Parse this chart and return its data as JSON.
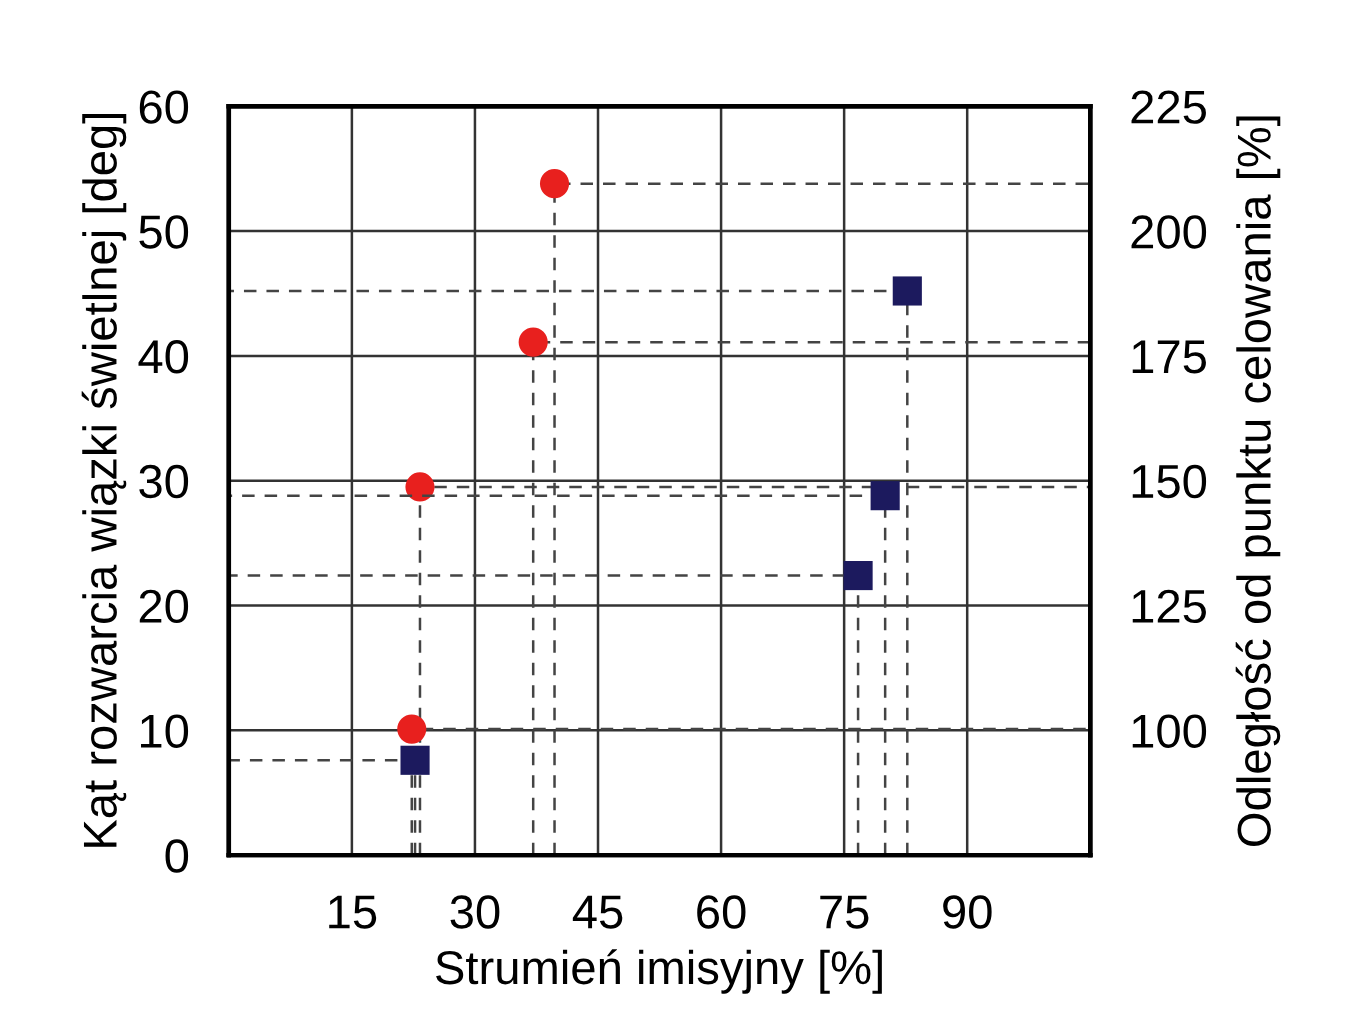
{
  "chart_data": {
    "type": "scatter",
    "xlabel": "Strumień imisyjny [%]",
    "ylabel": "Kąt rozwarcia wiązki świetlnej [deg]",
    "y2label": "Odległość od punktu celowania [%]",
    "xlim": [
      0,
      105
    ],
    "xticks": [
      15,
      30,
      45,
      60,
      75,
      90
    ],
    "ylim": [
      0,
      60
    ],
    "yticks": [
      0,
      10,
      20,
      30,
      40,
      50,
      60
    ],
    "y2lim": [
      75,
      225
    ],
    "y2ticks": [
      100,
      125,
      150,
      175,
      200,
      225
    ],
    "grid": true,
    "series": [
      {
        "type": "line",
        "color": "#444444",
        "line_style": "dashed",
        "marker": "none",
        "x": [
          22.3,
          22.3,
          105
        ],
        "values": [
          0,
          10.1,
          10.1
        ]
      },
      {
        "type": "line",
        "color": "#444444",
        "line_style": "dashed",
        "marker": "none",
        "x": [
          23.3,
          23.3,
          105
        ],
        "values": [
          0,
          29.5,
          29.5
        ]
      },
      {
        "type": "line",
        "color": "#444444",
        "line_style": "dashed",
        "marker": "none",
        "x": [
          37.1,
          37.1,
          105
        ],
        "values": [
          0,
          41.1,
          41.1
        ]
      },
      {
        "type": "line",
        "color": "#444444",
        "line_style": "dashed",
        "marker": "none",
        "x": [
          39.7,
          39.7,
          105
        ],
        "values": [
          0,
          53.8,
          53.8
        ]
      },
      {
        "type": "line",
        "color": "#444444",
        "line_style": "dashed",
        "marker": "none",
        "axis": "y2",
        "x": [
          22.7,
          22.7,
          0
        ],
        "values": [
          75,
          94,
          94
        ]
      },
      {
        "type": "line",
        "color": "#444444",
        "line_style": "dashed",
        "marker": "none",
        "axis": "y2",
        "x": [
          76.7,
          76.7,
          0
        ],
        "values": [
          75,
          131,
          131
        ]
      },
      {
        "type": "line",
        "color": "#444444",
        "line_style": "dashed",
        "marker": "none",
        "axis": "y2",
        "x": [
          80,
          80,
          0
        ],
        "values": [
          75,
          147,
          147
        ]
      },
      {
        "type": "line",
        "color": "#444444",
        "line_style": "dashed",
        "marker": "none",
        "axis": "y2",
        "x": [
          82.7,
          82.7,
          0
        ],
        "values": [
          75,
          188,
          188
        ]
      },
      {
        "color": "#e8201e",
        "marker": "circle",
        "x": [
          22.3,
          23.3,
          37.1,
          39.7
        ],
        "values": [
          10.1,
          29.5,
          41.1,
          53.8
        ]
      },
      {
        "color": "#1c1a5e",
        "marker": "square",
        "axis": "y2",
        "x": [
          22.7,
          76.7,
          80,
          82.7
        ],
        "values": [
          94,
          131,
          147,
          188
        ]
      }
    ]
  }
}
